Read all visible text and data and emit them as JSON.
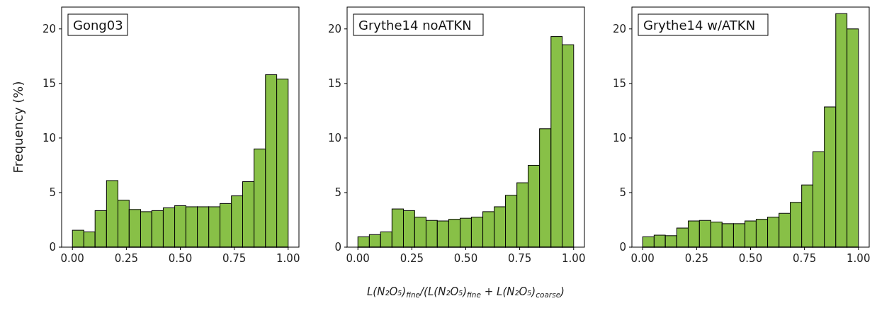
{
  "chart_data": [
    {
      "type": "histogram",
      "title": "Gong03",
      "ylabel": "Frequency (%)",
      "color": "#88c047",
      "tick_labels": true,
      "bins": [
        0,
        0.053,
        0.105,
        0.158,
        0.211,
        0.263,
        0.316,
        0.368,
        0.421,
        0.474,
        0.526,
        0.579,
        0.632,
        0.684,
        0.737,
        0.789,
        0.842,
        0.895,
        0.947,
        1
      ],
      "values": [
        1.55,
        1.4,
        3.35,
        6.1,
        4.3,
        3.45,
        3.25,
        3.35,
        3.6,
        3.8,
        3.7,
        3.7,
        3.7,
        4.0,
        4.7,
        6.0,
        9.0,
        15.8,
        15.4
      ],
      "xlim": [
        -0.05,
        1.05
      ],
      "ylim": [
        0,
        22
      ],
      "xticks": [
        {
          "value": 0,
          "label": "0.00"
        },
        {
          "value": 0.25,
          "label": "0.25"
        },
        {
          "value": 0.5,
          "label": "0.50"
        },
        {
          "value": 0.75,
          "label": "0.75"
        },
        {
          "value": 1,
          "label": "1.00"
        }
      ],
      "yticks": [
        0,
        5,
        10,
        15,
        20
      ]
    },
    {
      "type": "histogram",
      "title": "Grythe14 noATKN",
      "xlabel": "L(N₂O₅)$_{fine}$/(L(N₂O₅)$_{fine}$ + L(N₂O₅)$_{coarse}$)",
      "color": "#88c047",
      "bins": [
        0,
        0.053,
        0.105,
        0.158,
        0.211,
        0.263,
        0.316,
        0.368,
        0.421,
        0.474,
        0.526,
        0.579,
        0.632,
        0.684,
        0.737,
        0.789,
        0.842,
        0.895,
        0.947,
        1
      ],
      "values": [
        0.95,
        1.15,
        1.4,
        3.5,
        3.35,
        2.75,
        2.45,
        2.4,
        2.55,
        2.65,
        2.75,
        3.25,
        3.7,
        4.75,
        5.9,
        7.5,
        10.85,
        19.3,
        18.55
      ],
      "xlim": [
        -0.05,
        1.05
      ],
      "ylim": [
        0,
        22
      ],
      "xticks": [
        {
          "value": 0,
          "label": "0.00"
        },
        {
          "value": 0.25,
          "label": "0.25"
        },
        {
          "value": 0.5,
          "label": "0.50"
        },
        {
          "value": 0.75,
          "label": "0.75"
        },
        {
          "value": 1,
          "label": "1.00"
        }
      ],
      "yticks": [
        0,
        5,
        10,
        15,
        20
      ]
    },
    {
      "type": "histogram",
      "title": "Grythe14 w/ATKN",
      "color": "#88c047",
      "bins": [
        0,
        0.053,
        0.105,
        0.158,
        0.211,
        0.263,
        0.316,
        0.368,
        0.421,
        0.474,
        0.526,
        0.579,
        0.632,
        0.684,
        0.737,
        0.789,
        0.842,
        0.895,
        0.947,
        1
      ],
      "values": [
        0.95,
        1.1,
        1.05,
        1.75,
        2.4,
        2.45,
        2.3,
        2.15,
        2.15,
        2.4,
        2.55,
        2.75,
        3.1,
        4.1,
        5.7,
        8.75,
        12.85,
        21.4,
        20.0
      ],
      "xlim": [
        -0.05,
        1.05
      ],
      "ylim": [
        0,
        22
      ],
      "xticks": [
        {
          "value": 0,
          "label": "0.00"
        },
        {
          "value": 0.25,
          "label": "0.25"
        },
        {
          "value": 0.5,
          "label": "0.50"
        },
        {
          "value": 0.75,
          "label": "0.75"
        },
        {
          "value": 1,
          "label": "1.00"
        }
      ],
      "yticks": [
        0,
        5,
        10,
        15,
        20
      ]
    }
  ]
}
